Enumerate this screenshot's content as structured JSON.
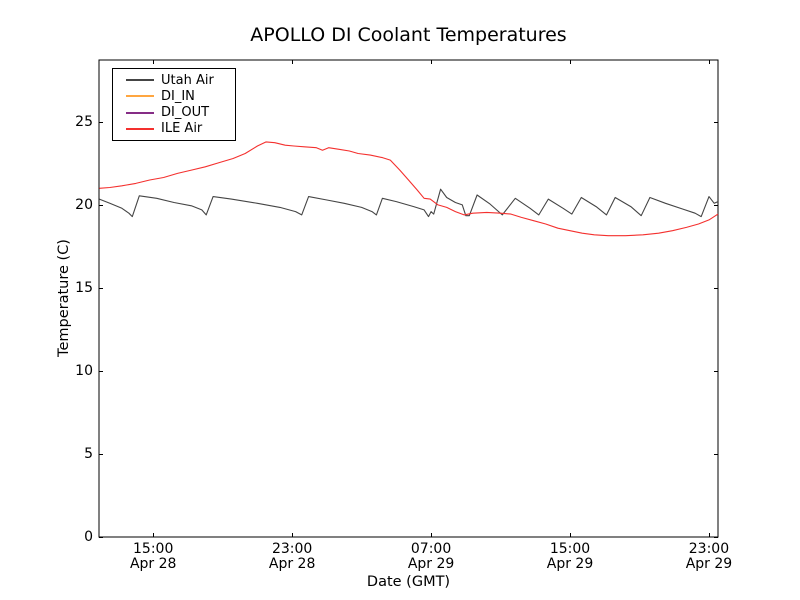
{
  "chart_data": {
    "type": "line",
    "title": "APOLLO DI Coolant Temperatures",
    "xlabel": "Date (GMT)",
    "ylabel": "Temperature (C)",
    "grid": false,
    "legend_position": "upper left",
    "x_unit": "hours since Apr 28 00:00 GMT",
    "xlim": [
      11.88,
      47.52
    ],
    "ylim": [
      0,
      28.73
    ],
    "y_ticks": [
      0,
      5,
      10,
      15,
      20,
      25
    ],
    "x_ticks": [
      {
        "pos": 15,
        "time": "15:00",
        "date": "Apr 28"
      },
      {
        "pos": 23,
        "time": "23:00",
        "date": "Apr 28"
      },
      {
        "pos": 31,
        "time": "07:00",
        "date": "Apr 29"
      },
      {
        "pos": 39,
        "time": "15:00",
        "date": "Apr 29"
      },
      {
        "pos": 47,
        "time": "23:00",
        "date": "Apr 29"
      }
    ],
    "series": [
      {
        "name": "Utah Air",
        "color": "#454545",
        "points": [
          [
            11.9,
            20.35
          ],
          [
            12.5,
            20.1
          ],
          [
            13.2,
            19.8
          ],
          [
            13.6,
            19.5
          ],
          [
            13.8,
            19.3
          ],
          [
            14.2,
            20.55
          ],
          [
            15.2,
            20.4
          ],
          [
            16.2,
            20.15
          ],
          [
            17.2,
            19.95
          ],
          [
            17.8,
            19.7
          ],
          [
            18.05,
            19.4
          ],
          [
            18.45,
            20.5
          ],
          [
            19.5,
            20.35
          ],
          [
            21.0,
            20.1
          ],
          [
            22.3,
            19.85
          ],
          [
            23.2,
            19.6
          ],
          [
            23.55,
            19.4
          ],
          [
            23.95,
            20.5
          ],
          [
            25.0,
            20.3
          ],
          [
            26.0,
            20.1
          ],
          [
            27.0,
            19.85
          ],
          [
            27.6,
            19.6
          ],
          [
            27.85,
            19.4
          ],
          [
            28.2,
            20.4
          ],
          [
            29.0,
            20.2
          ],
          [
            30.0,
            19.9
          ],
          [
            30.6,
            19.7
          ],
          [
            30.85,
            19.3
          ],
          [
            31.0,
            19.6
          ],
          [
            31.15,
            19.45
          ],
          [
            31.55,
            20.95
          ],
          [
            31.9,
            20.45
          ],
          [
            32.4,
            20.15
          ],
          [
            32.8,
            20.0
          ],
          [
            33.0,
            19.35
          ],
          [
            33.2,
            19.35
          ],
          [
            33.65,
            20.6
          ],
          [
            34.4,
            20.05
          ],
          [
            35.1,
            19.4
          ],
          [
            35.85,
            20.4
          ],
          [
            36.7,
            19.8
          ],
          [
            37.2,
            19.4
          ],
          [
            37.75,
            20.35
          ],
          [
            38.6,
            19.8
          ],
          [
            39.1,
            19.45
          ],
          [
            39.65,
            20.45
          ],
          [
            40.5,
            19.9
          ],
          [
            41.1,
            19.4
          ],
          [
            41.6,
            20.45
          ],
          [
            42.5,
            19.9
          ],
          [
            43.1,
            19.35
          ],
          [
            43.6,
            20.45
          ],
          [
            44.5,
            20.1
          ],
          [
            45.5,
            19.75
          ],
          [
            46.2,
            19.5
          ],
          [
            46.55,
            19.3
          ],
          [
            47.0,
            20.5
          ],
          [
            47.3,
            20.1
          ],
          [
            47.52,
            20.2
          ]
        ]
      },
      {
        "name": "DI_IN",
        "color": "#ffa640",
        "points": []
      },
      {
        "name": "DI_OUT",
        "color": "#862d86",
        "points": []
      },
      {
        "name": "ILE Air",
        "color": "#f4302e",
        "points": [
          [
            11.9,
            21.0
          ],
          [
            12.5,
            21.05
          ],
          [
            13.2,
            21.15
          ],
          [
            14.0,
            21.3
          ],
          [
            14.8,
            21.5
          ],
          [
            15.6,
            21.65
          ],
          [
            16.4,
            21.9
          ],
          [
            17.2,
            22.1
          ],
          [
            18.0,
            22.3
          ],
          [
            18.8,
            22.55
          ],
          [
            19.6,
            22.8
          ],
          [
            20.3,
            23.1
          ],
          [
            21.0,
            23.55
          ],
          [
            21.5,
            23.8
          ],
          [
            22.0,
            23.75
          ],
          [
            22.6,
            23.6
          ],
          [
            23.1,
            23.55
          ],
          [
            23.7,
            23.5
          ],
          [
            24.4,
            23.45
          ],
          [
            24.75,
            23.3
          ],
          [
            25.1,
            23.45
          ],
          [
            25.7,
            23.35
          ],
          [
            26.3,
            23.25
          ],
          [
            26.8,
            23.1
          ],
          [
            27.5,
            23.0
          ],
          [
            28.2,
            22.85
          ],
          [
            28.65,
            22.7
          ],
          [
            29.2,
            22.1
          ],
          [
            29.7,
            21.5
          ],
          [
            30.2,
            20.9
          ],
          [
            30.6,
            20.4
          ],
          [
            30.95,
            20.35
          ],
          [
            31.4,
            20.0
          ],
          [
            31.9,
            19.85
          ],
          [
            32.4,
            19.6
          ],
          [
            32.9,
            19.4
          ],
          [
            33.4,
            19.5
          ],
          [
            34.2,
            19.55
          ],
          [
            35.0,
            19.5
          ],
          [
            35.6,
            19.45
          ],
          [
            36.2,
            19.25
          ],
          [
            36.9,
            19.05
          ],
          [
            37.6,
            18.85
          ],
          [
            38.3,
            18.6
          ],
          [
            39.0,
            18.45
          ],
          [
            39.7,
            18.3
          ],
          [
            40.4,
            18.2
          ],
          [
            41.2,
            18.15
          ],
          [
            42.2,
            18.15
          ],
          [
            43.2,
            18.2
          ],
          [
            44.1,
            18.3
          ],
          [
            44.9,
            18.45
          ],
          [
            45.7,
            18.65
          ],
          [
            46.4,
            18.85
          ],
          [
            47.0,
            19.1
          ],
          [
            47.52,
            19.45
          ]
        ]
      }
    ]
  }
}
